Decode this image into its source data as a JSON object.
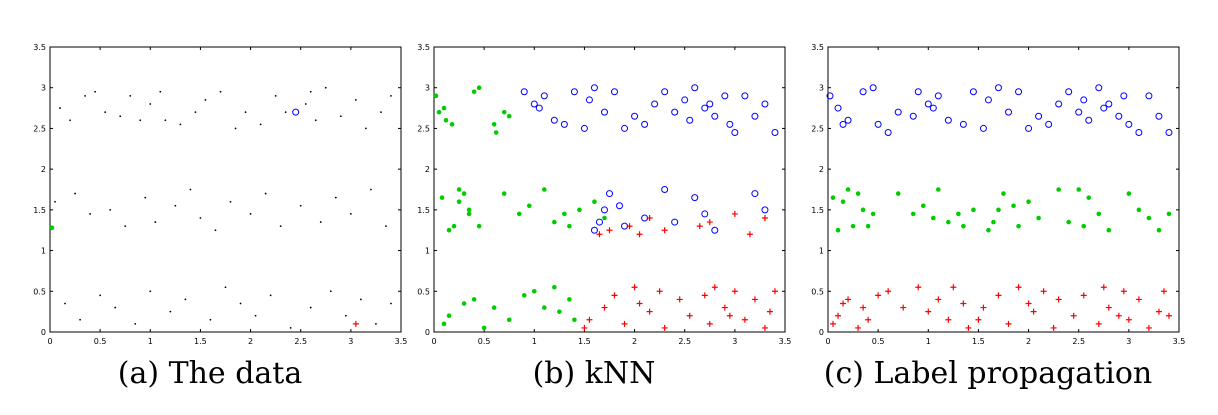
{
  "figure": {
    "captions": [
      "(a) The data",
      "(b) kNN",
      "(c) Label propagation"
    ]
  },
  "chart_data": [
    {
      "type": "scatter",
      "title": "(a) The data",
      "xlim": [
        0,
        3.5
      ],
      "ylim": [
        0,
        3.5
      ],
      "x_ticks": [
        "0",
        "0.5",
        "1",
        "1.5",
        "2",
        "2.5",
        "3",
        "3.5"
      ],
      "y_ticks": [
        "0",
        "0.5",
        "1",
        "1.5",
        "2",
        "2.5",
        "3",
        "3.5"
      ],
      "grid": false,
      "series": [
        {
          "role": "unlabeled",
          "marker": "dot",
          "color": "#000000",
          "x": [
            0.1,
            0.2,
            0.35,
            0.45,
            0.55,
            0.7,
            0.8,
            0.9,
            1.0,
            1.1,
            1.15,
            1.3,
            1.45,
            1.55,
            1.7,
            1.85,
            1.95,
            2.1,
            2.25,
            2.35,
            2.55,
            2.6,
            2.65,
            2.75,
            2.9,
            3.05,
            3.15,
            3.3,
            3.4,
            0.05,
            0.25,
            0.4,
            0.6,
            0.75,
            0.95,
            1.05,
            1.25,
            1.4,
            1.5,
            1.65,
            1.8,
            2.0,
            2.15,
            2.3,
            2.5,
            2.7,
            2.85,
            3.0,
            3.2,
            3.35,
            0.15,
            0.3,
            0.5,
            0.65,
            0.85,
            1.0,
            1.2,
            1.35,
            1.6,
            1.75,
            1.9,
            2.05,
            2.2,
            2.4,
            2.6,
            2.8,
            2.95,
            3.1,
            3.25,
            3.4
          ],
          "y": [
            2.75,
            2.6,
            2.9,
            2.95,
            2.7,
            2.65,
            2.9,
            2.6,
            2.8,
            2.95,
            2.6,
            2.55,
            2.7,
            2.85,
            2.95,
            2.5,
            2.7,
            2.55,
            2.9,
            2.7,
            2.8,
            2.95,
            2.6,
            3.0,
            2.65,
            2.85,
            2.5,
            2.7,
            2.9,
            1.6,
            1.7,
            1.45,
            1.5,
            1.3,
            1.65,
            1.35,
            1.55,
            1.75,
            1.4,
            1.25,
            1.6,
            1.45,
            1.7,
            1.3,
            1.55,
            1.35,
            1.65,
            1.45,
            1.75,
            1.3,
            0.35,
            0.15,
            0.45,
            0.3,
            0.1,
            0.5,
            0.25,
            0.4,
            0.15,
            0.55,
            0.35,
            0.2,
            0.45,
            0.05,
            0.3,
            0.5,
            0.2,
            0.4,
            0.1,
            0.35
          ]
        },
        {
          "role": "labeled class 1",
          "marker": "circle",
          "color": "#0000ff",
          "x": [
            2.45
          ],
          "y": [
            2.7
          ]
        },
        {
          "role": "labeled class 2",
          "marker": "dot",
          "color": "#00cc00",
          "x": [
            0.02
          ],
          "y": [
            1.28
          ]
        },
        {
          "role": "labeled class 3",
          "marker": "plus",
          "color": "#ff0000",
          "x": [
            3.05
          ],
          "y": [
            0.1
          ]
        }
      ]
    },
    {
      "type": "scatter",
      "title": "(b) kNN",
      "xlim": [
        0,
        3.5
      ],
      "ylim": [
        0,
        3.5
      ],
      "x_ticks": [
        "0",
        "0.5",
        "1",
        "1.5",
        "2",
        "2.5",
        "3",
        "3.5"
      ],
      "y_ticks": [
        "0",
        "0.5",
        "1",
        "1.5",
        "2",
        "2.5",
        "3",
        "3.5"
      ],
      "grid": false,
      "series": [
        {
          "role": "class 2",
          "marker": "dot",
          "color": "#00cc00",
          "x": [
            0.02,
            0.05,
            0.1,
            0.12,
            0.18,
            0.2,
            0.25,
            0.3,
            0.35,
            0.4,
            0.45,
            0.6,
            0.62,
            0.7,
            0.75,
            0.08,
            0.15,
            0.25,
            0.35,
            0.45,
            0.7,
            0.85,
            0.95,
            1.1,
            1.2,
            1.3,
            1.35,
            1.45,
            1.6,
            1.7,
            0.1,
            0.15,
            0.3,
            0.4,
            0.5,
            0.6,
            0.75,
            0.9,
            1.0,
            1.1,
            1.2,
            1.25,
            1.35,
            1.4
          ],
          "y": [
            2.9,
            2.7,
            2.75,
            2.6,
            2.55,
            1.3,
            1.6,
            1.7,
            1.45,
            2.95,
            3.0,
            2.55,
            2.45,
            2.7,
            2.65,
            1.65,
            1.25,
            1.75,
            1.5,
            1.3,
            1.7,
            1.45,
            1.55,
            1.75,
            1.35,
            1.45,
            1.3,
            1.5,
            1.6,
            1.4,
            0.1,
            0.2,
            0.35,
            0.4,
            0.05,
            0.3,
            0.15,
            0.45,
            0.5,
            0.3,
            0.55,
            0.25,
            0.4,
            0.15
          ]
        },
        {
          "role": "class 1",
          "marker": "circle",
          "color": "#0000ff",
          "x": [
            0.9,
            1.0,
            1.05,
            1.1,
            1.2,
            1.3,
            1.4,
            1.5,
            1.55,
            1.6,
            1.7,
            1.8,
            1.9,
            2.0,
            2.1,
            2.2,
            2.3,
            2.4,
            2.5,
            2.55,
            2.6,
            2.7,
            2.75,
            2.8,
            2.9,
            2.95,
            3.0,
            3.1,
            3.2,
            3.3,
            3.4,
            1.6,
            1.65,
            1.7,
            1.75,
            1.85,
            1.9,
            2.1,
            2.3,
            2.4,
            2.6,
            2.7,
            2.8,
            3.2,
            3.3
          ],
          "y": [
            2.95,
            2.8,
            2.75,
            2.9,
            2.6,
            2.55,
            2.95,
            2.5,
            2.85,
            3.0,
            2.7,
            2.95,
            2.5,
            2.65,
            2.55,
            2.8,
            2.95,
            2.7,
            2.85,
            2.6,
            3.0,
            2.75,
            2.8,
            2.65,
            2.9,
            2.55,
            2.45,
            2.9,
            2.65,
            2.8,
            2.45,
            1.25,
            1.35,
            1.5,
            1.7,
            1.55,
            1.3,
            1.4,
            1.75,
            1.35,
            1.65,
            1.45,
            1.25,
            1.7,
            1.5
          ]
        },
        {
          "role": "class 3",
          "marker": "plus",
          "color": "#ff0000",
          "x": [
            1.5,
            1.55,
            1.7,
            1.8,
            1.9,
            2.0,
            2.05,
            2.15,
            2.25,
            2.3,
            2.45,
            2.55,
            2.7,
            2.75,
            2.8,
            2.9,
            2.95,
            3.0,
            3.1,
            3.2,
            3.3,
            3.35,
            3.4,
            1.65,
            1.75,
            1.95,
            2.05,
            2.15,
            2.3,
            2.65,
            2.75,
            3.0,
            3.15,
            3.3
          ],
          "y": [
            0.05,
            0.15,
            0.3,
            0.45,
            0.1,
            0.55,
            0.35,
            0.25,
            0.5,
            0.05,
            0.4,
            0.2,
            0.45,
            0.1,
            0.55,
            0.3,
            0.2,
            0.5,
            0.15,
            0.4,
            0.05,
            0.25,
            0.5,
            1.2,
            1.25,
            1.3,
            1.2,
            1.4,
            1.25,
            1.3,
            1.35,
            1.45,
            1.2,
            1.4
          ]
        }
      ]
    },
    {
      "type": "scatter",
      "title": "(c) Label propagation",
      "xlim": [
        0,
        3.5
      ],
      "ylim": [
        0,
        3.5
      ],
      "x_ticks": [
        "0",
        "0.5",
        "1",
        "1.5",
        "2",
        "2.5",
        "3",
        "3.5"
      ],
      "y_ticks": [
        "0",
        "0.5",
        "1",
        "1.5",
        "2",
        "2.5",
        "3",
        "3.5"
      ],
      "grid": false,
      "series": [
        {
          "role": "class 1",
          "marker": "circle",
          "color": "#0000ff",
          "x": [
            0.02,
            0.1,
            0.15,
            0.2,
            0.35,
            0.45,
            0.5,
            0.6,
            0.7,
            0.85,
            0.9,
            1.0,
            1.05,
            1.1,
            1.2,
            1.35,
            1.45,
            1.55,
            1.6,
            1.7,
            1.8,
            1.9,
            2.0,
            2.1,
            2.2,
            2.3,
            2.4,
            2.5,
            2.55,
            2.6,
            2.7,
            2.75,
            2.8,
            2.9,
            2.95,
            3.0,
            3.1,
            3.2,
            3.3,
            3.4
          ],
          "y": [
            2.9,
            2.75,
            2.55,
            2.6,
            2.95,
            3.0,
            2.55,
            2.45,
            2.7,
            2.65,
            2.95,
            2.8,
            2.75,
            2.9,
            2.6,
            2.55,
            2.95,
            2.5,
            2.85,
            3.0,
            2.7,
            2.95,
            2.5,
            2.65,
            2.55,
            2.8,
            2.95,
            2.7,
            2.85,
            2.6,
            3.0,
            2.75,
            2.8,
            2.65,
            2.9,
            2.55,
            2.45,
            2.9,
            2.65,
            2.45
          ]
        },
        {
          "role": "class 2",
          "marker": "dot",
          "color": "#00cc00",
          "x": [
            0.05,
            0.1,
            0.15,
            0.2,
            0.25,
            0.35,
            0.45,
            0.7,
            0.85,
            0.95,
            1.1,
            1.2,
            1.3,
            1.35,
            1.45,
            1.6,
            1.65,
            1.7,
            1.75,
            1.85,
            1.9,
            2.1,
            2.3,
            2.4,
            2.6,
            2.7,
            2.8,
            3.0,
            3.1,
            3.2,
            3.3,
            3.4,
            0.3,
            0.4,
            1.05,
            2.0,
            2.5,
            2.55
          ],
          "y": [
            1.65,
            1.25,
            1.6,
            1.75,
            1.3,
            1.5,
            1.45,
            1.7,
            1.45,
            1.55,
            1.75,
            1.35,
            1.45,
            1.3,
            1.5,
            1.25,
            1.35,
            1.5,
            1.7,
            1.55,
            1.3,
            1.4,
            1.75,
            1.35,
            1.65,
            1.45,
            1.25,
            1.7,
            1.5,
            1.4,
            1.25,
            1.45,
            1.7,
            1.3,
            1.4,
            1.6,
            1.75,
            1.3
          ]
        },
        {
          "role": "class 3",
          "marker": "plus",
          "color": "#ff0000",
          "x": [
            0.05,
            0.1,
            0.15,
            0.2,
            0.3,
            0.35,
            0.4,
            0.5,
            0.6,
            0.75,
            0.9,
            1.0,
            1.1,
            1.2,
            1.25,
            1.35,
            1.4,
            1.5,
            1.55,
            1.7,
            1.8,
            1.9,
            2.0,
            2.05,
            2.15,
            2.25,
            2.3,
            2.45,
            2.55,
            2.7,
            2.75,
            2.8,
            2.9,
            2.95,
            3.0,
            3.1,
            3.2,
            3.3,
            3.35,
            3.4
          ],
          "y": [
            0.1,
            0.2,
            0.35,
            0.4,
            0.05,
            0.3,
            0.15,
            0.45,
            0.5,
            0.3,
            0.55,
            0.25,
            0.4,
            0.15,
            0.55,
            0.35,
            0.05,
            0.15,
            0.3,
            0.45,
            0.1,
            0.55,
            0.35,
            0.25,
            0.5,
            0.05,
            0.4,
            0.2,
            0.45,
            0.1,
            0.55,
            0.3,
            0.2,
            0.5,
            0.15,
            0.4,
            0.05,
            0.25,
            0.5,
            0.2
          ]
        }
      ]
    }
  ]
}
